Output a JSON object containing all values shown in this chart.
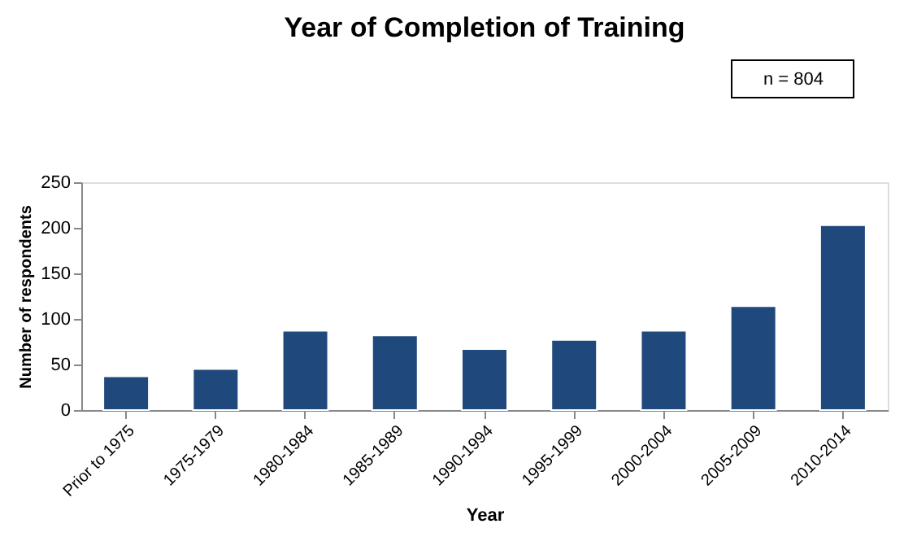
{
  "chart_data": {
    "type": "bar",
    "title": "Year of Completion of Training",
    "xlabel": "Year",
    "ylabel": "Number of respondents",
    "categories": [
      "Prior to 1975",
      "1975-1979",
      "1980-1984",
      "1985-1989",
      "1990-1994",
      "1995-1999",
      "2000-2004",
      "2005-2009",
      "2010-2014"
    ],
    "values": [
      37,
      45,
      87,
      82,
      67,
      77,
      87,
      114,
      203
    ],
    "color": "#1f497d",
    "ylim": [
      0,
      250
    ],
    "yticks": [
      0,
      50,
      100,
      150,
      200,
      250
    ],
    "grid": false,
    "annotations": [
      "n = 804"
    ]
  }
}
